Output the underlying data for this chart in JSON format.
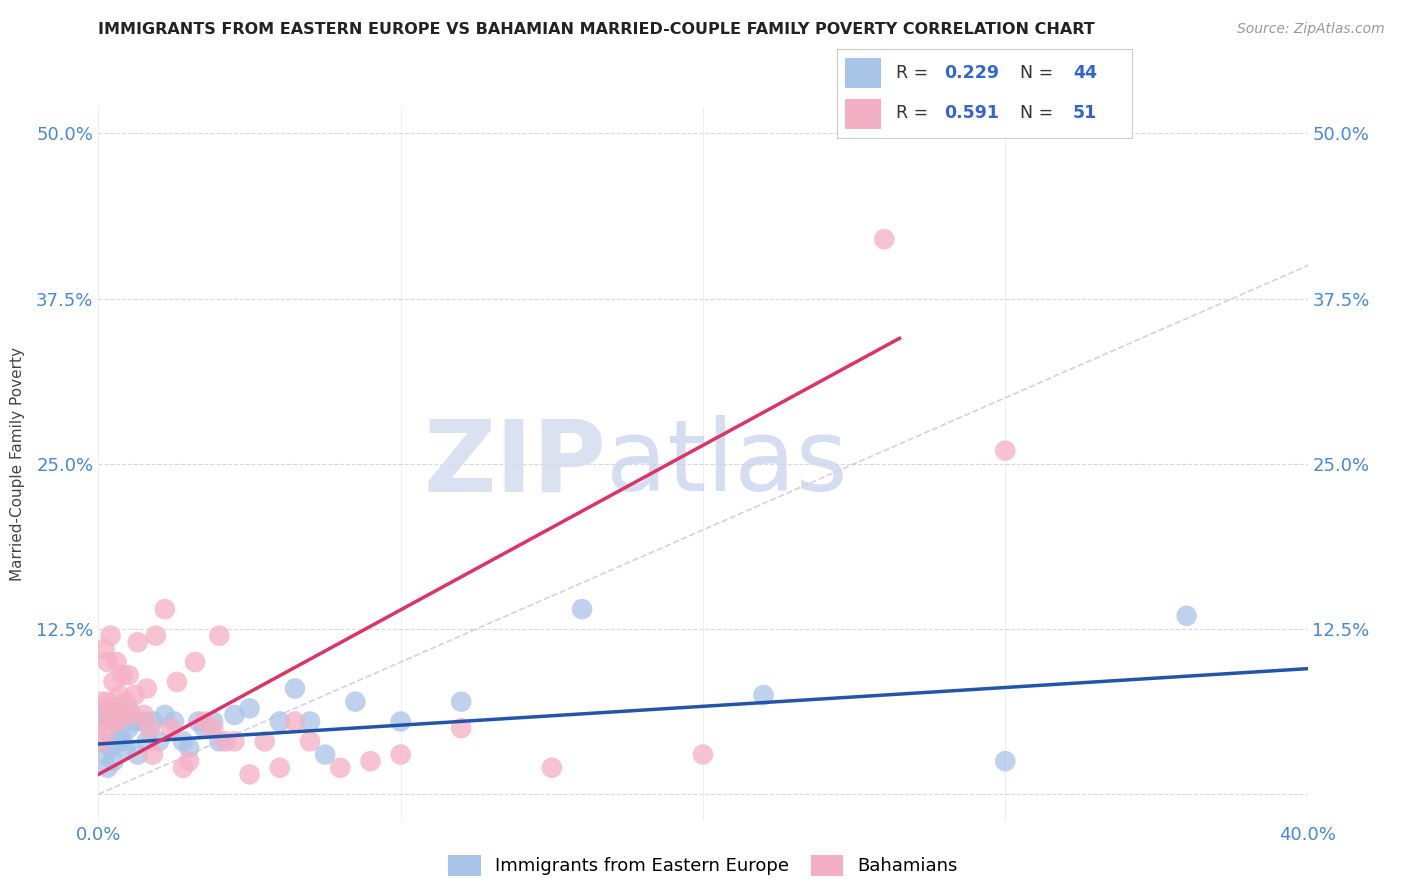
{
  "title": "IMMIGRANTS FROM EASTERN EUROPE VS BAHAMIAN MARRIED-COUPLE FAMILY POVERTY CORRELATION CHART",
  "source": "Source: ZipAtlas.com",
  "ylabel": "Married-Couple Family Poverty",
  "xlim": [
    0.0,
    0.4
  ],
  "ylim": [
    -0.02,
    0.52
  ],
  "xticks": [
    0.0,
    0.1,
    0.2,
    0.3,
    0.4
  ],
  "xticklabels": [
    "0.0%",
    "",
    "",
    "",
    "40.0%"
  ],
  "yticks": [
    0.0,
    0.125,
    0.25,
    0.375,
    0.5
  ],
  "yticklabels": [
    "",
    "12.5%",
    "25.0%",
    "37.5%",
    "50.0%"
  ],
  "blue_R": "0.229",
  "blue_N": "44",
  "pink_R": "0.591",
  "pink_N": "51",
  "blue_color": "#a8c4e8",
  "pink_color": "#f5afc4",
  "blue_line_color": "#2255aa",
  "pink_line_color": "#dd3366",
  "grid_color": "#d8d8e0",
  "watermark_color": "#d0daf0",
  "blue_x": [
    0.001,
    0.001,
    0.002,
    0.002,
    0.003,
    0.003,
    0.004,
    0.004,
    0.005,
    0.005,
    0.006,
    0.006,
    0.007,
    0.008,
    0.009,
    0.01,
    0.01,
    0.012,
    0.013,
    0.015,
    0.016,
    0.018,
    0.02,
    0.022,
    0.025,
    0.028,
    0.03,
    0.033,
    0.035,
    0.038,
    0.04,
    0.045,
    0.05,
    0.06,
    0.065,
    0.07,
    0.075,
    0.085,
    0.1,
    0.12,
    0.16,
    0.22,
    0.3,
    0.36
  ],
  "blue_y": [
    0.04,
    0.06,
    0.03,
    0.06,
    0.02,
    0.055,
    0.035,
    0.06,
    0.025,
    0.055,
    0.04,
    0.065,
    0.045,
    0.04,
    0.035,
    0.05,
    0.065,
    0.055,
    0.03,
    0.055,
    0.04,
    0.055,
    0.04,
    0.06,
    0.055,
    0.04,
    0.035,
    0.055,
    0.05,
    0.055,
    0.04,
    0.06,
    0.065,
    0.055,
    0.08,
    0.055,
    0.03,
    0.07,
    0.055,
    0.07,
    0.14,
    0.075,
    0.025,
    0.135
  ],
  "pink_x": [
    0.001,
    0.001,
    0.002,
    0.002,
    0.002,
    0.003,
    0.003,
    0.004,
    0.004,
    0.005,
    0.005,
    0.006,
    0.006,
    0.007,
    0.007,
    0.008,
    0.008,
    0.009,
    0.01,
    0.011,
    0.012,
    0.013,
    0.015,
    0.016,
    0.017,
    0.018,
    0.019,
    0.022,
    0.024,
    0.026,
    0.028,
    0.03,
    0.032,
    0.035,
    0.038,
    0.04,
    0.042,
    0.045,
    0.05,
    0.055,
    0.06,
    0.065,
    0.07,
    0.08,
    0.09,
    0.1,
    0.12,
    0.15,
    0.2,
    0.26,
    0.3
  ],
  "pink_y": [
    0.04,
    0.07,
    0.055,
    0.11,
    0.045,
    0.07,
    0.1,
    0.065,
    0.12,
    0.085,
    0.055,
    0.1,
    0.055,
    0.075,
    0.06,
    0.09,
    0.06,
    0.07,
    0.09,
    0.06,
    0.075,
    0.115,
    0.06,
    0.08,
    0.05,
    0.03,
    0.12,
    0.14,
    0.05,
    0.085,
    0.02,
    0.025,
    0.1,
    0.055,
    0.05,
    0.12,
    0.04,
    0.04,
    0.015,
    0.04,
    0.02,
    0.055,
    0.04,
    0.02,
    0.025,
    0.03,
    0.05,
    0.02,
    0.03,
    0.42,
    0.26
  ],
  "blue_trend_x": [
    0.0,
    0.4
  ],
  "blue_trend_y": [
    0.038,
    0.095
  ],
  "pink_trend_x": [
    0.0,
    0.265
  ],
  "pink_trend_y": [
    0.015,
    0.345
  ]
}
